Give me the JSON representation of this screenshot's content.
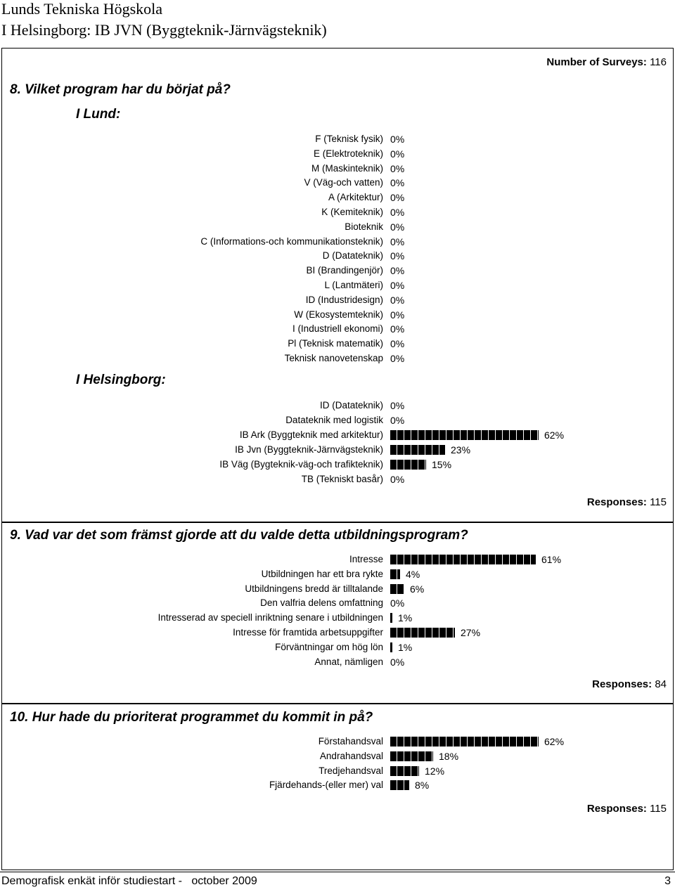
{
  "header": {
    "line1": "Lunds Tekniska Högskola",
    "line2": "I Helsingborg: IB JVN (Byggteknik-Järnvägsteknik)"
  },
  "surveys": {
    "label": "Number of Surveys:",
    "value": "116"
  },
  "q8": {
    "title": "8. Vilket program har du börjat på?",
    "lund_heading": "I Lund:",
    "lund_items": [
      {
        "label": "F (Teknisk fysik)",
        "pct": "0%",
        "value": 0
      },
      {
        "label": "E (Elektroteknik)",
        "pct": "0%",
        "value": 0
      },
      {
        "label": "M (Maskinteknik)",
        "pct": "0%",
        "value": 0
      },
      {
        "label": "V (Väg-och vatten)",
        "pct": "0%",
        "value": 0
      },
      {
        "label": "A (Arkitektur)",
        "pct": "0%",
        "value": 0
      },
      {
        "label": "K (Kemiteknik)",
        "pct": "0%",
        "value": 0
      },
      {
        "label": "Bioteknik",
        "pct": "0%",
        "value": 0
      },
      {
        "label": "C (Informations-och kommunikationsteknik)",
        "pct": "0%",
        "value": 0
      },
      {
        "label": "D (Datateknik)",
        "pct": "0%",
        "value": 0
      },
      {
        "label": "BI (Brandingenjör)",
        "pct": "0%",
        "value": 0
      },
      {
        "label": "L (Lantmäteri)",
        "pct": "0%",
        "value": 0
      },
      {
        "label": "ID (Industridesign)",
        "pct": "0%",
        "value": 0
      },
      {
        "label": "W (Ekosystemteknik)",
        "pct": "0%",
        "value": 0
      },
      {
        "label": "I (Industriell ekonomi)",
        "pct": "0%",
        "value": 0
      },
      {
        "label": "Pl (Teknisk matematik)",
        "pct": "0%",
        "value": 0
      },
      {
        "label": "Teknisk nanovetenskap",
        "pct": "0%",
        "value": 0
      }
    ],
    "hbg_heading": "I Helsingborg:",
    "hbg_items": [
      {
        "label": "ID (Datateknik)",
        "pct": "0%",
        "value": 0
      },
      {
        "label": "Datateknik med logistik",
        "pct": "0%",
        "value": 0
      },
      {
        "label": "IB Ark (Byggteknik med arkitektur)",
        "pct": "62%",
        "value": 62
      },
      {
        "label": "IB Jvn (Byggteknik-Järnvägsteknik)",
        "pct": "23%",
        "value": 23
      },
      {
        "label": "IB Väg (Bygteknik-väg-och trafikteknik)",
        "pct": "15%",
        "value": 15
      },
      {
        "label": "TB (Tekniskt basår)",
        "pct": "0%",
        "value": 0
      }
    ],
    "responses_label": "Responses:",
    "responses": "115"
  },
  "q9": {
    "title": "9. Vad var det som främst gjorde att du valde detta utbildningsprogram?",
    "items": [
      {
        "label": "Intresse",
        "pct": "61%",
        "value": 61
      },
      {
        "label": "Utbildningen har ett bra rykte",
        "pct": "4%",
        "value": 4
      },
      {
        "label": "Utbildningens bredd är tilltalande",
        "pct": "6%",
        "value": 6
      },
      {
        "label": "Den valfria delens omfattning",
        "pct": "0%",
        "value": 0
      },
      {
        "label": "Intresserad av speciell inriktning senare i utbildningen",
        "pct": "1%",
        "value": 1
      },
      {
        "label": "Intresse för framtida arbetsuppgifter",
        "pct": "27%",
        "value": 27
      },
      {
        "label": "Förväntningar om hög lön",
        "pct": "1%",
        "value": 1
      },
      {
        "label": "Annat, nämligen",
        "pct": "0%",
        "value": 0
      }
    ],
    "responses_label": "Responses:",
    "responses": "84"
  },
  "q10": {
    "title": "10. Hur hade du prioriterat programmet du kommit in på?",
    "items": [
      {
        "label": "Förstahandsval",
        "pct": "62%",
        "value": 62
      },
      {
        "label": "Andrahandsval",
        "pct": "18%",
        "value": 18
      },
      {
        "label": "Tredjehandsval",
        "pct": "12%",
        "value": 12
      },
      {
        "label": "Fjärdehands-(eller mer) val",
        "pct": "8%",
        "value": 8
      }
    ],
    "responses_label": "Responses:",
    "responses": "115"
  },
  "footer": {
    "text": "Demografisk enkät inför studiestart -   october 2009",
    "page": "3"
  }
}
